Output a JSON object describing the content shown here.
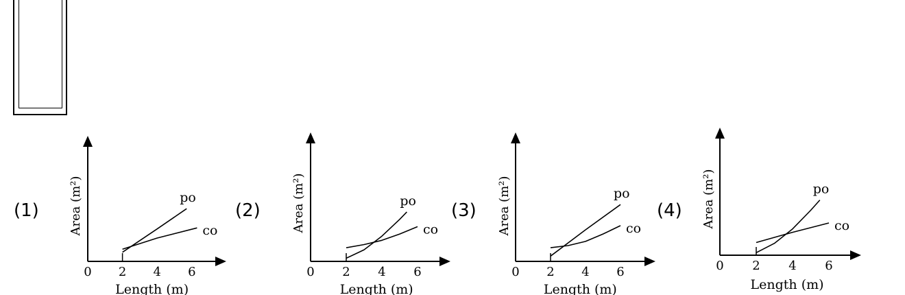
{
  "chart_data": [
    {
      "type": "line",
      "label": "(1)",
      "xlabel": "Length (m)",
      "ylabel": "Area (m²)",
      "x_ticks": [
        "0",
        "2",
        "4",
        "6"
      ],
      "xlim": [
        0,
        7
      ],
      "ylim": [
        0,
        9
      ],
      "series": [
        {
          "name": "po",
          "x": [
            2,
            4,
            5.7
          ],
          "y": [
            0.9,
            3.2,
            5.2
          ]
        },
        {
          "name": "co",
          "x": [
            2,
            4,
            6.3
          ],
          "y": [
            1.2,
            2.3,
            3.3
          ]
        }
      ]
    },
    {
      "type": "line",
      "label": "(2)",
      "xlabel": "Length (m)",
      "ylabel": "Area (m²)",
      "x_ticks": [
        "0",
        "2",
        "4",
        "6"
      ],
      "xlim": [
        0,
        7
      ],
      "ylim": [
        0,
        9
      ],
      "series": [
        {
          "name": "po",
          "x": [
            2,
            3,
            4,
            5,
            5.4
          ],
          "y": [
            0.3,
            1.1,
            2.4,
            4.0,
            4.7
          ]
        },
        {
          "name": "co",
          "x": [
            2,
            3,
            4,
            5,
            6
          ],
          "y": [
            1.3,
            1.6,
            2.0,
            2.6,
            3.3
          ]
        }
      ]
    },
    {
      "type": "line",
      "label": "(3)",
      "xlabel": "Length (m)",
      "ylabel": "Area (m²)",
      "x_ticks": [
        "0",
        "2",
        "4",
        "6"
      ],
      "xlim": [
        0,
        7
      ],
      "ylim": [
        0,
        9
      ],
      "series": [
        {
          "name": "po",
          "x": [
            2,
            4,
            6
          ],
          "y": [
            0.5,
            3.0,
            5.4
          ]
        },
        {
          "name": "co",
          "x": [
            2,
            3,
            4,
            5,
            6
          ],
          "y": [
            1.3,
            1.5,
            1.9,
            2.6,
            3.4
          ]
        }
      ]
    },
    {
      "type": "line",
      "label": "(4)",
      "xlabel": "Length (m)",
      "ylabel": "Area (m²)",
      "x_ticks": [
        "0",
        "2",
        "4",
        "6"
      ],
      "xlim": [
        0,
        7
      ],
      "ylim": [
        0,
        11
      ],
      "series": [
        {
          "name": "po",
          "x": [
            2,
            3,
            4,
            5,
            5.5
          ],
          "y": [
            0.3,
            1.4,
            3.1,
            5.3,
            6.5
          ]
        },
        {
          "name": "co",
          "x": [
            2,
            4,
            6
          ],
          "y": [
            1.5,
            2.7,
            3.8
          ]
        }
      ]
    }
  ]
}
